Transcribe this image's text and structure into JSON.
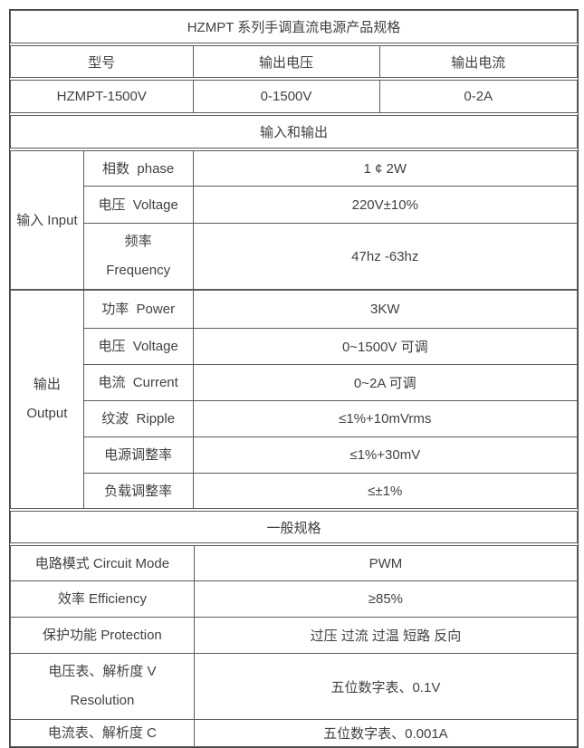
{
  "title": "HZMPT 系列手调直流电源产品规格",
  "model": {
    "headers": [
      "型号",
      "输出电压",
      "输出电流"
    ],
    "values": [
      "HZMPT-1500V",
      "0-1500V",
      "0-2A"
    ]
  },
  "io": {
    "heading": "输入和输出",
    "input": {
      "label": "输入 Input",
      "rows": [
        {
          "label": "相数  phase",
          "value": "1 ¢ 2W"
        },
        {
          "label": "电压  Voltage",
          "value": "220V±10%"
        },
        {
          "label": "频率",
          "label2": "Frequency",
          "value": "47hz -63hz"
        }
      ]
    },
    "output": {
      "label": "输出",
      "label2": "Output",
      "rows": [
        {
          "label": "功率  Power",
          "value": "3KW"
        },
        {
          "label": "电压  Voltage",
          "value": "0~1500V 可调"
        },
        {
          "label": "电流  Current",
          "value": "0~2A 可调"
        },
        {
          "label": "纹波  Ripple",
          "value": "≤1%+10mVrms"
        },
        {
          "label": "电源调整率",
          "value": "≤1%+30mV"
        },
        {
          "label": "负载调整率",
          "value": "≤±1%"
        }
      ]
    }
  },
  "general": {
    "heading": "一般规格",
    "rows": [
      {
        "label": "电路模式 Circuit Mode",
        "value": "PWM"
      },
      {
        "label": "效率 Efficiency",
        "value": "≥85%"
      },
      {
        "label": "保护功能 Protection",
        "value": "过压 过流 过温 短路 反向"
      },
      {
        "label": "电压表、解析度 V",
        "label2": "Resolution",
        "value": "五位数字表、0.1V"
      },
      {
        "label": "电流表、解析度 C",
        "value": "五位数字表、0.001A"
      }
    ]
  },
  "colors": {
    "outer_border": "#474747",
    "inner_border": "#5c5c5c",
    "text": "#414141",
    "background": "#ffffff"
  }
}
